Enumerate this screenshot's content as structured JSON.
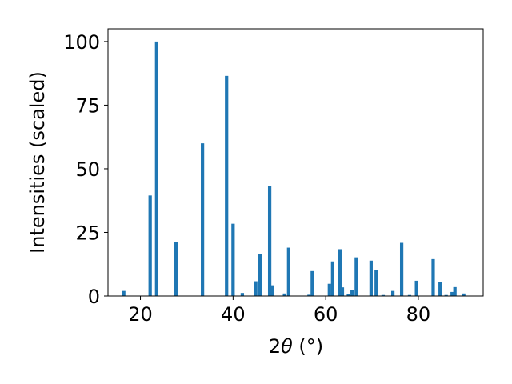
{
  "chart_data": {
    "type": "bar",
    "xlabel_main": "2",
    "xlabel_theta": "θ",
    "xlabel_unit": " (°)",
    "ylabel": "Intensities (scaled)",
    "xlim": [
      13,
      94
    ],
    "ylim": [
      0,
      105
    ],
    "x_ticks": [
      20,
      40,
      60,
      80
    ],
    "y_ticks": [
      0,
      25,
      50,
      75,
      100
    ],
    "bar_color": "#1f77b4",
    "bars": [
      {
        "x": 16.4,
        "y": 2.0
      },
      {
        "x": 22.1,
        "y": 39.5
      },
      {
        "x": 23.5,
        "y": 100.0
      },
      {
        "x": 27.7,
        "y": 21.2
      },
      {
        "x": 33.4,
        "y": 60.0
      },
      {
        "x": 38.6,
        "y": 86.5
      },
      {
        "x": 40.0,
        "y": 28.4
      },
      {
        "x": 42.0,
        "y": 1.2
      },
      {
        "x": 44.9,
        "y": 5.8
      },
      {
        "x": 45.8,
        "y": 16.5
      },
      {
        "x": 47.9,
        "y": 43.2
      },
      {
        "x": 48.5,
        "y": 4.2
      },
      {
        "x": 51.1,
        "y": 1.0
      },
      {
        "x": 52.0,
        "y": 19.0
      },
      {
        "x": 56.4,
        "y": 0.5
      },
      {
        "x": 57.1,
        "y": 9.8
      },
      {
        "x": 60.8,
        "y": 4.8
      },
      {
        "x": 61.5,
        "y": 13.6
      },
      {
        "x": 63.1,
        "y": 18.4
      },
      {
        "x": 63.6,
        "y": 3.4
      },
      {
        "x": 64.9,
        "y": 0.8
      },
      {
        "x": 65.7,
        "y": 2.4
      },
      {
        "x": 66.6,
        "y": 15.2
      },
      {
        "x": 69.8,
        "y": 13.9
      },
      {
        "x": 70.9,
        "y": 10.1
      },
      {
        "x": 72.4,
        "y": 0.4
      },
      {
        "x": 74.5,
        "y": 2.0
      },
      {
        "x": 76.4,
        "y": 20.9
      },
      {
        "x": 78.1,
        "y": 0.4
      },
      {
        "x": 79.6,
        "y": 6.0
      },
      {
        "x": 83.2,
        "y": 14.5
      },
      {
        "x": 84.7,
        "y": 5.5
      },
      {
        "x": 86.0,
        "y": 0.4
      },
      {
        "x": 87.3,
        "y": 1.6
      },
      {
        "x": 87.9,
        "y": 3.5
      },
      {
        "x": 89.8,
        "y": 1.0
      }
    ]
  }
}
